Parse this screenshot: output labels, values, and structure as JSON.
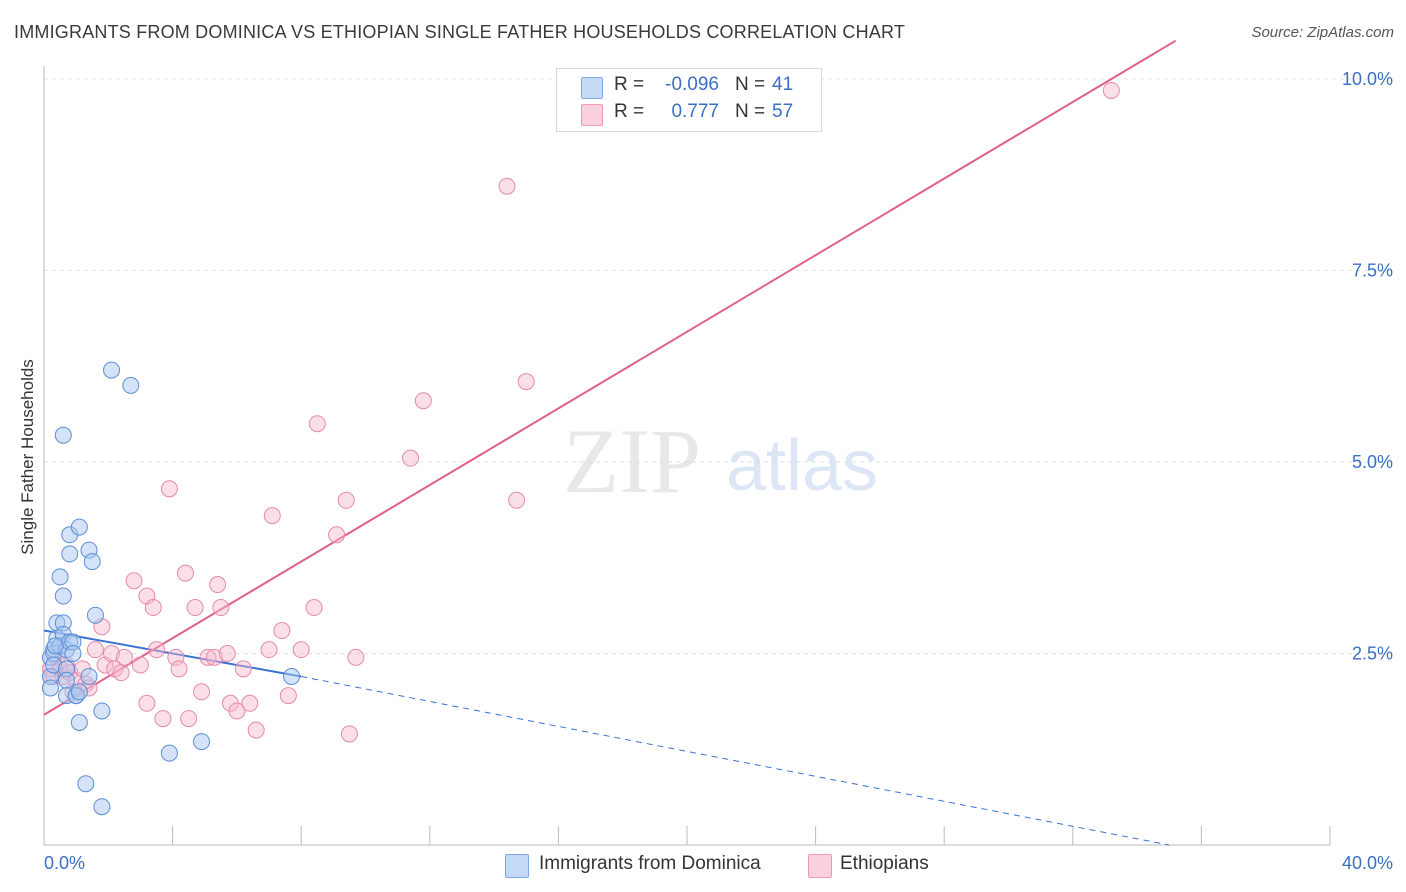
{
  "title": "IMMIGRANTS FROM DOMINICA VS ETHIOPIAN SINGLE FATHER HOUSEHOLDS CORRELATION CHART",
  "source": "Source: ZipAtlas.com",
  "watermark": {
    "zip": "ZIP",
    "atlas": "atlas"
  },
  "legend_box": {
    "rows": [
      {
        "r_label": "R =",
        "r_value": "-0.096",
        "n_label": "N =",
        "n_value": "41",
        "color": "#aac8f0"
      },
      {
        "r_label": "R =",
        "r_value": "0.777",
        "n_label": "N =",
        "n_value": "57",
        "color": "#f7b9cc"
      }
    ]
  },
  "colors": {
    "blue_fill": "#aac8f0",
    "blue_stroke": "#5b8ed6",
    "blue_line": "#3a72d0",
    "pink_fill": "#f7b9cc",
    "pink_stroke": "#e58aa8",
    "pink_line": "#e0608c",
    "grid": "#e2e2e2",
    "tick_text": "#3b6fc4"
  },
  "chart_data": {
    "type": "scatter",
    "title": "IMMIGRANTS FROM DOMINICA VS ETHIOPIAN SINGLE FATHER HOUSEHOLDS CORRELATION CHART",
    "xlabel": "",
    "ylabel": "Single Father Households",
    "xlim": [
      0,
      40
    ],
    "ylim": [
      0,
      10.5
    ],
    "x_tick_labels": [
      {
        "value": 0,
        "label": "0.0%"
      },
      {
        "value": 40,
        "label": "40.0%"
      }
    ],
    "y_tick_labels": [
      {
        "value": 2.5,
        "label": "2.5%"
      },
      {
        "value": 5.0,
        "label": "5.0%"
      },
      {
        "value": 7.5,
        "label": "7.5%"
      },
      {
        "value": 10.0,
        "label": "10.0%"
      }
    ],
    "series": [
      {
        "name": "Immigrants from Dominica",
        "r": -0.096,
        "n": 41,
        "points": [
          [
            0.2,
            2.45
          ],
          [
            0.2,
            2.2
          ],
          [
            0.2,
            2.05
          ],
          [
            0.3,
            2.55
          ],
          [
            0.3,
            2.5
          ],
          [
            0.3,
            2.35
          ],
          [
            0.4,
            2.9
          ],
          [
            0.4,
            2.7
          ],
          [
            0.5,
            2.6
          ],
          [
            0.5,
            3.5
          ],
          [
            0.6,
            2.9
          ],
          [
            0.6,
            2.75
          ],
          [
            0.6,
            3.25
          ],
          [
            0.6,
            5.35
          ],
          [
            0.7,
            2.55
          ],
          [
            0.7,
            2.3
          ],
          [
            0.7,
            2.15
          ],
          [
            0.7,
            1.95
          ],
          [
            0.8,
            3.8
          ],
          [
            0.8,
            4.05
          ],
          [
            0.8,
            2.65
          ],
          [
            0.9,
            2.65
          ],
          [
            0.9,
            2.5
          ],
          [
            1.0,
            1.95
          ],
          [
            1.0,
            1.95
          ],
          [
            1.1,
            1.6
          ],
          [
            1.1,
            4.15
          ],
          [
            1.1,
            2.0
          ],
          [
            1.3,
            0.8
          ],
          [
            1.4,
            3.85
          ],
          [
            1.4,
            2.2
          ],
          [
            1.5,
            3.7
          ],
          [
            1.6,
            3.0
          ],
          [
            1.8,
            1.75
          ],
          [
            1.8,
            0.5
          ],
          [
            2.1,
            6.2
          ],
          [
            2.7,
            6.0
          ],
          [
            3.9,
            1.2
          ],
          [
            4.9,
            1.35
          ],
          [
            7.7,
            2.2
          ],
          [
            0.35,
            2.6
          ]
        ],
        "trend": {
          "x0": 0,
          "y0": 2.8,
          "x1": 8,
          "y1": 2.2,
          "dash_to_x": 35,
          "dash_to_y": 0.0
        }
      },
      {
        "name": "Ethiopians",
        "r": 0.777,
        "n": 57,
        "points": [
          [
            0.2,
            2.3
          ],
          [
            0.3,
            2.2
          ],
          [
            0.4,
            2.45
          ],
          [
            0.5,
            2.3
          ],
          [
            0.6,
            2.2
          ],
          [
            0.7,
            2.35
          ],
          [
            0.8,
            2.25
          ],
          [
            0.9,
            2.0
          ],
          [
            1.0,
            2.15
          ],
          [
            1.2,
            2.3
          ],
          [
            1.3,
            2.1
          ],
          [
            1.4,
            2.05
          ],
          [
            1.6,
            2.55
          ],
          [
            1.8,
            2.85
          ],
          [
            1.9,
            2.35
          ],
          [
            2.1,
            2.5
          ],
          [
            2.2,
            2.3
          ],
          [
            2.4,
            2.25
          ],
          [
            2.5,
            2.45
          ],
          [
            2.8,
            3.45
          ],
          [
            3.0,
            2.35
          ],
          [
            3.2,
            3.25
          ],
          [
            3.2,
            1.85
          ],
          [
            3.4,
            3.1
          ],
          [
            3.5,
            2.55
          ],
          [
            3.7,
            1.65
          ],
          [
            3.9,
            4.65
          ],
          [
            4.1,
            2.45
          ],
          [
            4.2,
            2.3
          ],
          [
            4.4,
            3.55
          ],
          [
            4.5,
            1.65
          ],
          [
            4.7,
            3.1
          ],
          [
            4.9,
            2.0
          ],
          [
            5.1,
            2.45
          ],
          [
            5.3,
            2.45
          ],
          [
            5.4,
            3.4
          ],
          [
            5.5,
            3.1
          ],
          [
            5.7,
            2.5
          ],
          [
            5.8,
            1.85
          ],
          [
            6.0,
            1.75
          ],
          [
            6.2,
            2.3
          ],
          [
            6.4,
            1.85
          ],
          [
            6.6,
            1.5
          ],
          [
            7.0,
            2.55
          ],
          [
            7.1,
            4.3
          ],
          [
            7.4,
            2.8
          ],
          [
            7.6,
            1.95
          ],
          [
            8.0,
            2.55
          ],
          [
            8.4,
            3.1
          ],
          [
            8.5,
            5.5
          ],
          [
            9.1,
            4.05
          ],
          [
            9.4,
            4.5
          ],
          [
            9.5,
            1.45
          ],
          [
            9.7,
            2.45
          ],
          [
            11.4,
            5.05
          ],
          [
            11.8,
            5.8
          ],
          [
            14.7,
            4.5
          ]
        ],
        "extra_points": [
          [
            14.4,
            8.6
          ],
          [
            15.0,
            6.05
          ],
          [
            33.2,
            9.85
          ]
        ],
        "trend": {
          "x0": 0,
          "y0": 1.7,
          "x1": 35.2,
          "y1": 10.5
        }
      }
    ]
  }
}
